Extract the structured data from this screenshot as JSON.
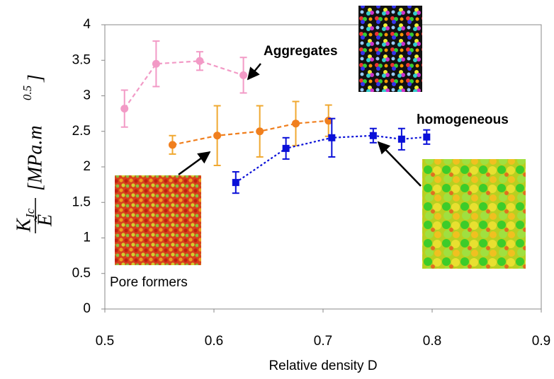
{
  "chart_data": {
    "type": "errorbar_line",
    "xlabel": "Relative density D",
    "ylabel": {
      "numerator": "K",
      "numerator_sub": "Ic",
      "denominator": "Ẽ",
      "units": "[MPa.m",
      "units_sup": "0.5",
      "units_close": "]"
    },
    "xlim": [
      0.5,
      0.9
    ],
    "xticks": [
      0.5,
      0.6,
      0.7,
      0.8,
      0.9
    ],
    "ylim": [
      0,
      4
    ],
    "yticks": [
      0,
      0.5,
      1,
      1.5,
      2,
      2.5,
      3,
      3.5,
      4
    ],
    "series": [
      {
        "name": "Aggregates",
        "color": "#f29ac6",
        "error_color": "#f29ac6",
        "marker": "circle",
        "dash": "dashed",
        "x": [
          0.518,
          0.547,
          0.587,
          0.627
        ],
        "values": [
          2.82,
          3.45,
          3.49,
          3.29
        ],
        "errors": [
          0.26,
          0.32,
          0.13,
          0.25
        ]
      },
      {
        "name": "Pore formers",
        "color": "#f07f1e",
        "error_color": "#f0a830",
        "marker": "circle",
        "dash": "dashed",
        "x": [
          0.562,
          0.603,
          0.642,
          0.675,
          0.705
        ],
        "values": [
          2.31,
          2.44,
          2.5,
          2.61,
          2.65
        ],
        "errors": [
          0.13,
          0.42,
          0.36,
          0.31,
          0.22
        ]
      },
      {
        "name": "homogeneous",
        "color": "#0a10d8",
        "error_color": "#0a10d8",
        "marker": "square",
        "dash": "dotted",
        "x": [
          0.62,
          0.666,
          0.708,
          0.746,
          0.772,
          0.795
        ],
        "values": [
          1.78,
          2.26,
          2.41,
          2.44,
          2.39,
          2.42
        ],
        "errors": [
          0.15,
          0.15,
          0.27,
          0.1,
          0.15,
          0.1
        ]
      }
    ]
  }
}
